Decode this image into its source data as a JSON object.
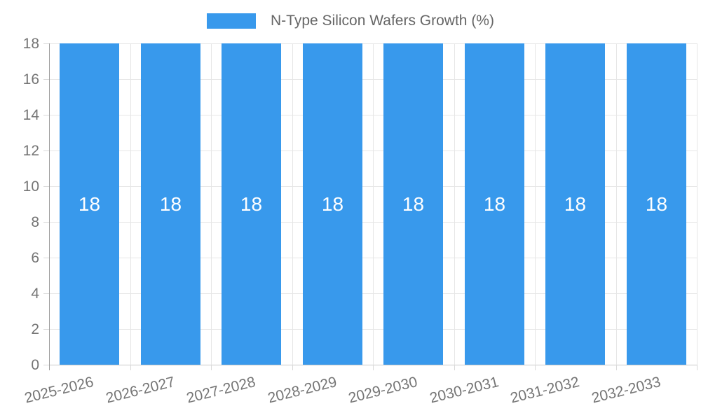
{
  "legend": {
    "label": "N-Type Silicon Wafers Growth (%)"
  },
  "chart_data": {
    "type": "bar",
    "title": "",
    "xlabel": "",
    "ylabel": "",
    "categories": [
      "2025-2026",
      "2026-2027",
      "2027-2028",
      "2028-2029",
      "2029-2030",
      "2030-2031",
      "2031-2032",
      "2032-2033"
    ],
    "series": [
      {
        "name": "N-Type Silicon Wafers Growth (%)",
        "values": [
          18,
          18,
          18,
          18,
          18,
          18,
          18,
          18
        ]
      }
    ],
    "bar_value_labels": [
      "18",
      "18",
      "18",
      "18",
      "18",
      "18",
      "18",
      "18"
    ],
    "ylim": [
      0,
      18
    ],
    "ytick_step": 2,
    "ytick_labels": [
      "0",
      "2",
      "4",
      "6",
      "8",
      "10",
      "12",
      "14",
      "16",
      "18"
    ],
    "grid": true,
    "legend_position": "top-center",
    "bar_width_fraction": 0.735,
    "x_label_rotation_deg": -14,
    "colors": {
      "bar": "#3899EC",
      "bar_label": "#FFFFFF",
      "grid_line": "#E6E6E6",
      "zero_line": "#C9C9C9",
      "y_axis_line": "#9E9E9E",
      "tick_mark": "#D9D9D9",
      "axis_text": "#757575",
      "legend_text": "#666666"
    }
  }
}
